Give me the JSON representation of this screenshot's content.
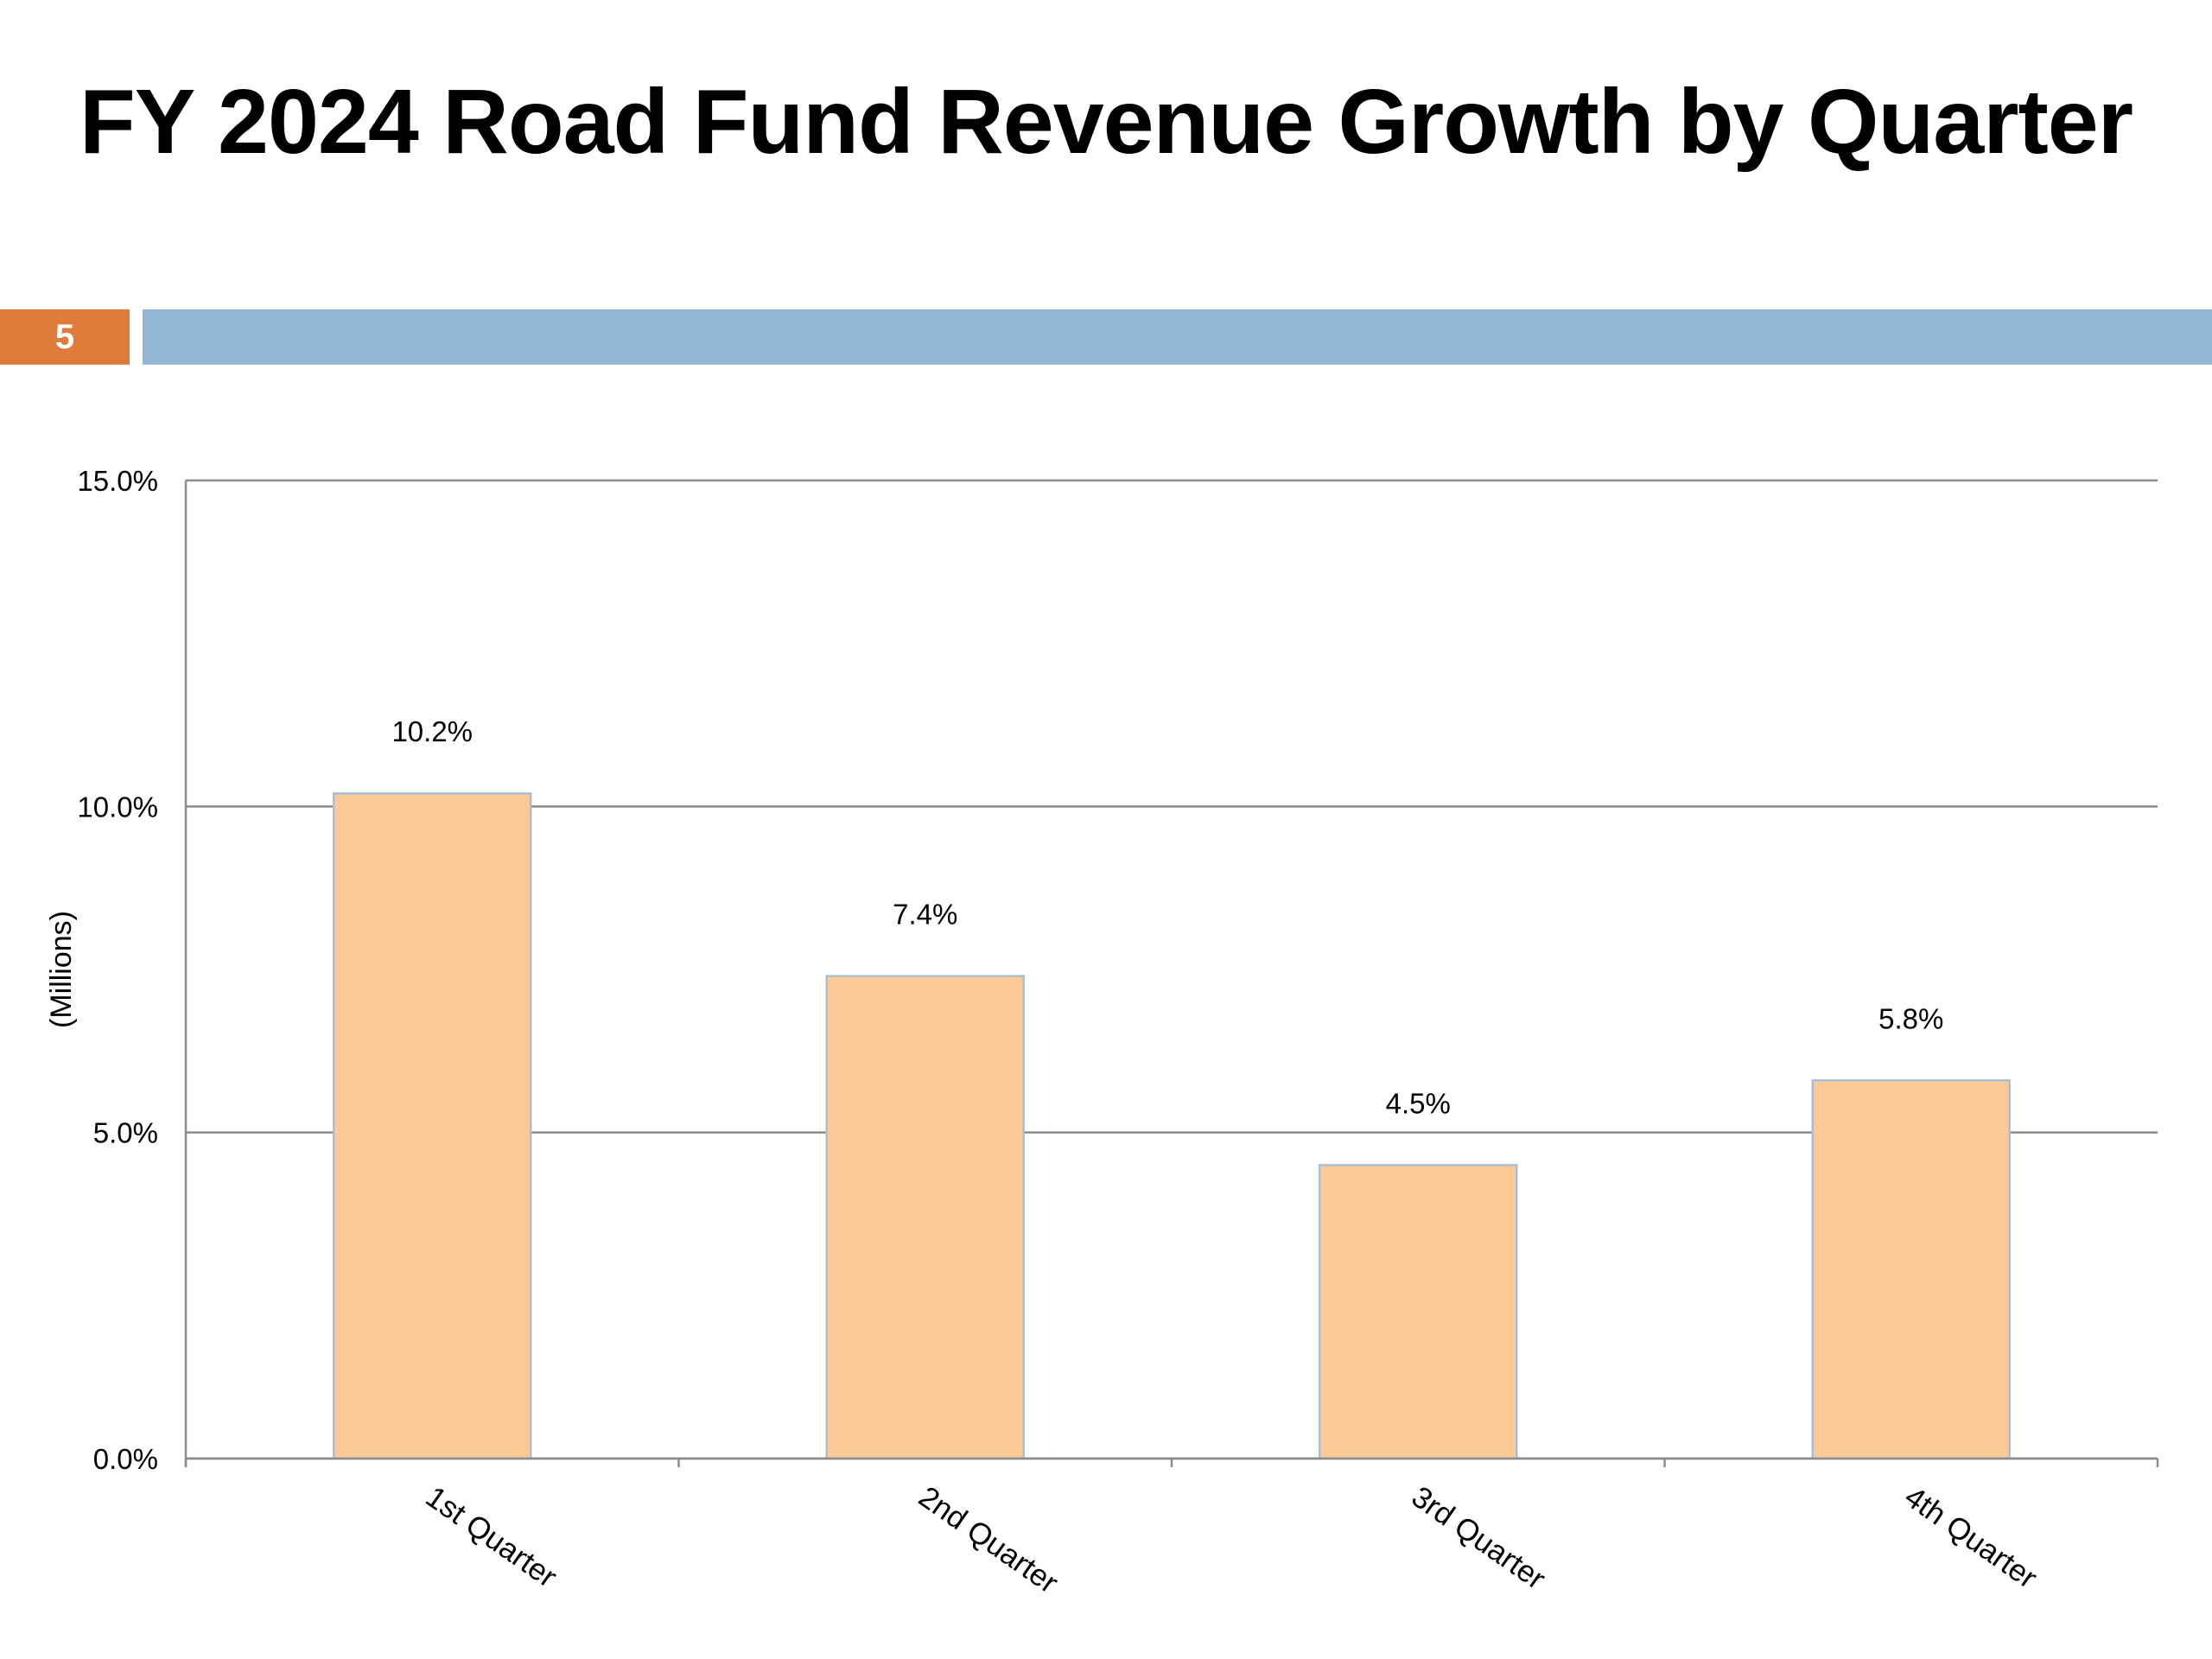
{
  "slide": {
    "title": "FY 2024 Road Fund Revenue Growth by Quarter",
    "number": "5"
  },
  "colors": {
    "bar_fill": "#fdc997",
    "bar_stroke": "#a9bfd4",
    "accent_orange": "#e07b3c",
    "header_blue": "#94b6d6",
    "grid": "#8c8c8c"
  },
  "chart_data": {
    "type": "bar",
    "title": "FY 2024 Road Fund Revenue Growth by Quarter",
    "xlabel": "",
    "ylabel": "(Millions)",
    "categories": [
      "1st Quarter",
      "2nd Quarter",
      "3rd Quarter",
      "4th Quarter"
    ],
    "values": [
      10.2,
      7.4,
      4.5,
      5.8
    ],
    "data_labels": [
      "10.2%",
      "7.4%",
      "4.5%",
      "5.8%"
    ],
    "yticks": [
      0,
      5,
      10,
      15
    ],
    "ytick_labels": [
      "0.0%",
      "5.0%",
      "10.0%",
      "15.0%"
    ],
    "ylim": [
      0,
      15
    ],
    "grid": true,
    "legend": "none"
  }
}
